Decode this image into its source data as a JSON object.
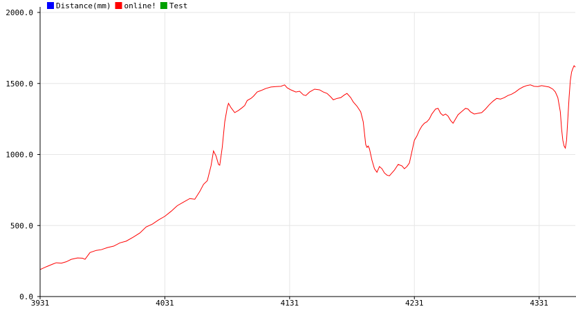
{
  "colors": {
    "axis": "#000000",
    "grid": "#e6e6e6",
    "background": "#ffffff"
  },
  "chart_data": {
    "type": "line",
    "title": "",
    "xlabel": "",
    "ylabel": "",
    "grid": true,
    "legend_placement": "top-left",
    "xlim": [
      3931,
      4360
    ],
    "ylim": [
      0,
      2000
    ],
    "x_ticks": [
      "3931",
      "4031",
      "4131",
      "4231",
      "4331"
    ],
    "x_tick_values": [
      3931,
      4031,
      4131,
      4231,
      4331
    ],
    "y_ticks": [
      "0.0",
      "500.0",
      "1000.0",
      "1500.0",
      "2000.0"
    ],
    "y_tick_values": [
      0,
      500,
      1000,
      1500,
      2000
    ],
    "series": [
      {
        "name": "Distance(mm)",
        "color": "#0000ff",
        "points": []
      },
      {
        "name": "online!",
        "color": "#ff0000",
        "points": [
          [
            3931,
            190
          ],
          [
            3936,
            210
          ],
          [
            3941,
            228
          ],
          [
            3944,
            238
          ],
          [
            3948,
            235
          ],
          [
            3952,
            245
          ],
          [
            3956,
            262
          ],
          [
            3961,
            272
          ],
          [
            3965,
            270
          ],
          [
            3967,
            262
          ],
          [
            3971,
            310
          ],
          [
            3976,
            325
          ],
          [
            3980,
            330
          ],
          [
            3985,
            345
          ],
          [
            3990,
            355
          ],
          [
            3995,
            378
          ],
          [
            4000,
            390
          ],
          [
            4006,
            420
          ],
          [
            4011,
            448
          ],
          [
            4016,
            490
          ],
          [
            4021,
            510
          ],
          [
            4026,
            540
          ],
          [
            4031,
            565
          ],
          [
            4036,
            600
          ],
          [
            4041,
            640
          ],
          [
            4046,
            665
          ],
          [
            4051,
            690
          ],
          [
            4055,
            685
          ],
          [
            4059,
            740
          ],
          [
            4062,
            790
          ],
          [
            4065,
            815
          ],
          [
            4068,
            920
          ],
          [
            4070,
            1025
          ],
          [
            4072,
            990
          ],
          [
            4074,
            930
          ],
          [
            4075,
            925
          ],
          [
            4077,
            1050
          ],
          [
            4079,
            1230
          ],
          [
            4081,
            1330
          ],
          [
            4082,
            1360
          ],
          [
            4084,
            1330
          ],
          [
            4087,
            1295
          ],
          [
            4090,
            1310
          ],
          [
            4093,
            1330
          ],
          [
            4095,
            1345
          ],
          [
            4097,
            1380
          ],
          [
            4100,
            1395
          ],
          [
            4102,
            1410
          ],
          [
            4105,
            1440
          ],
          [
            4108,
            1450
          ],
          [
            4112,
            1465
          ],
          [
            4116,
            1475
          ],
          [
            4120,
            1478
          ],
          [
            4124,
            1480
          ],
          [
            4127,
            1490
          ],
          [
            4129,
            1470
          ],
          [
            4132,
            1455
          ],
          [
            4136,
            1440
          ],
          [
            4139,
            1445
          ],
          [
            4142,
            1420
          ],
          [
            4144,
            1415
          ],
          [
            4147,
            1440
          ],
          [
            4151,
            1460
          ],
          [
            4155,
            1455
          ],
          [
            4158,
            1440
          ],
          [
            4161,
            1430
          ],
          [
            4164,
            1405
          ],
          [
            4166,
            1385
          ],
          [
            4169,
            1395
          ],
          [
            4172,
            1400
          ],
          [
            4175,
            1420
          ],
          [
            4177,
            1430
          ],
          [
            4180,
            1400
          ],
          [
            4182,
            1370
          ],
          [
            4185,
            1340
          ],
          [
            4188,
            1300
          ],
          [
            4190,
            1230
          ],
          [
            4191,
            1150
          ],
          [
            4192,
            1070
          ],
          [
            4193,
            1050
          ],
          [
            4194,
            1060
          ],
          [
            4195,
            1040
          ],
          [
            4197,
            960
          ],
          [
            4199,
            900
          ],
          [
            4201,
            875
          ],
          [
            4203,
            915
          ],
          [
            4205,
            900
          ],
          [
            4207,
            870
          ],
          [
            4209,
            855
          ],
          [
            4211,
            850
          ],
          [
            4213,
            870
          ],
          [
            4215,
            890
          ],
          [
            4218,
            930
          ],
          [
            4221,
            920
          ],
          [
            4223,
            900
          ],
          [
            4225,
            915
          ],
          [
            4227,
            940
          ],
          [
            4229,
            1020
          ],
          [
            4231,
            1100
          ],
          [
            4233,
            1130
          ],
          [
            4235,
            1170
          ],
          [
            4237,
            1200
          ],
          [
            4239,
            1220
          ],
          [
            4241,
            1230
          ],
          [
            4243,
            1250
          ],
          [
            4245,
            1285
          ],
          [
            4248,
            1320
          ],
          [
            4250,
            1325
          ],
          [
            4252,
            1290
          ],
          [
            4254,
            1275
          ],
          [
            4256,
            1285
          ],
          [
            4258,
            1270
          ],
          [
            4260,
            1240
          ],
          [
            4262,
            1220
          ],
          [
            4264,
            1250
          ],
          [
            4266,
            1280
          ],
          [
            4268,
            1295
          ],
          [
            4270,
            1310
          ],
          [
            4272,
            1325
          ],
          [
            4274,
            1320
          ],
          [
            4276,
            1300
          ],
          [
            4279,
            1285
          ],
          [
            4282,
            1290
          ],
          [
            4285,
            1295
          ],
          [
            4288,
            1320
          ],
          [
            4291,
            1350
          ],
          [
            4294,
            1375
          ],
          [
            4297,
            1395
          ],
          [
            4300,
            1390
          ],
          [
            4303,
            1400
          ],
          [
            4306,
            1415
          ],
          [
            4309,
            1425
          ],
          [
            4312,
            1440
          ],
          [
            4315,
            1460
          ],
          [
            4318,
            1475
          ],
          [
            4321,
            1485
          ],
          [
            4324,
            1490
          ],
          [
            4327,
            1480
          ],
          [
            4330,
            1478
          ],
          [
            4333,
            1485
          ],
          [
            4336,
            1480
          ],
          [
            4339,
            1475
          ],
          [
            4342,
            1460
          ],
          [
            4344,
            1440
          ],
          [
            4346,
            1400
          ],
          [
            4348,
            1300
          ],
          [
            4349,
            1180
          ],
          [
            4350,
            1100
          ],
          [
            4351,
            1060
          ],
          [
            4352,
            1045
          ],
          [
            4353,
            1100
          ],
          [
            4354,
            1250
          ],
          [
            4355,
            1400
          ],
          [
            4356,
            1520
          ],
          [
            4357,
            1580
          ],
          [
            4358,
            1605
          ],
          [
            4359,
            1625
          ],
          [
            4360,
            1615
          ]
        ]
      },
      {
        "name": "Test",
        "color": "#00a000",
        "points": []
      }
    ]
  }
}
